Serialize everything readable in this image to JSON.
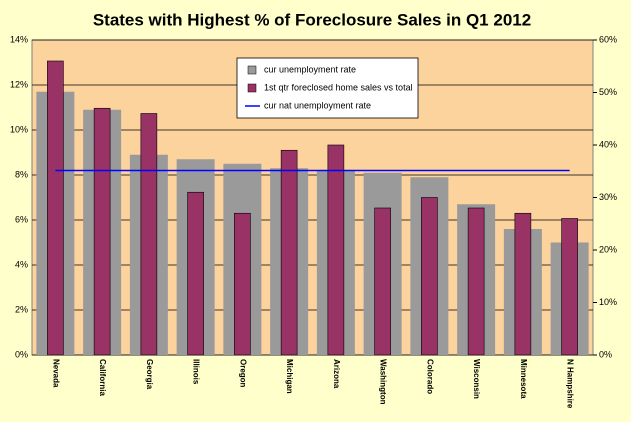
{
  "chart_data": {
    "type": "bar",
    "title": "States with Highest % of Foreclosure Sales in  Q1 2012",
    "categories": [
      "Nevada",
      "California",
      "Georgia",
      "Illinois",
      "Oregon",
      "Michigan",
      "Arizona",
      "Washington",
      "Colorado",
      "Wisconsin",
      "Minnesota",
      "N Hampshire"
    ],
    "series": [
      {
        "name": "cur unemployment rate",
        "color": "#9a9a9a",
        "values": [
          11.7,
          10.9,
          8.9,
          8.7,
          8.5,
          8.3,
          8.2,
          8.1,
          7.9,
          6.7,
          5.6,
          5.0
        ]
      },
      {
        "name": "1st qtr foreclosed home sales vs total",
        "color": "#993366",
        "axis": "y2",
        "values": [
          56,
          47,
          46,
          31,
          27,
          39,
          40,
          28,
          30,
          28,
          27,
          26
        ]
      },
      {
        "name": "cur nat unemployment rate",
        "color": "#0000ff",
        "type": "line",
        "values": [
          8.2,
          8.2,
          8.2,
          8.2,
          8.2,
          8.2,
          8.2,
          8.2,
          8.2,
          8.2,
          8.2,
          8.2
        ]
      }
    ],
    "ylim": [
      0,
      14
    ],
    "yticks": [
      {
        "value": 0,
        "label": "0%"
      },
      {
        "value": 2,
        "label": "2%"
      },
      {
        "value": 4,
        "label": "4%"
      },
      {
        "value": 6,
        "label": "6%"
      },
      {
        "value": 8,
        "label": "8%"
      },
      {
        "value": 10,
        "label": "10%"
      },
      {
        "value": 12,
        "label": "12%"
      },
      {
        "value": 14,
        "label": "14%"
      }
    ],
    "y2lim": [
      0,
      60
    ],
    "y2ticks": [
      {
        "value": 0,
        "label": "0%"
      },
      {
        "value": 10,
        "label": "10%"
      },
      {
        "value": 20,
        "label": "20%"
      },
      {
        "value": 30,
        "label": "30%"
      },
      {
        "value": 40,
        "label": "40%"
      },
      {
        "value": 50,
        "label": "50%"
      },
      {
        "value": 60,
        "label": "60%"
      }
    ],
    "grid": true,
    "legend": "top"
  }
}
